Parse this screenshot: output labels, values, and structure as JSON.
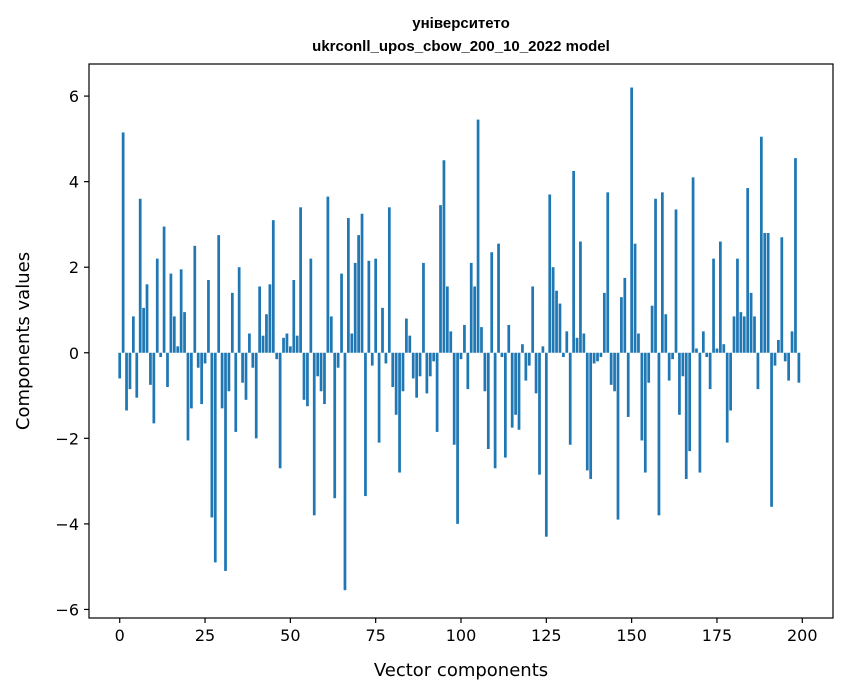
{
  "chart_data": {
    "type": "bar",
    "title_line1": "університето",
    "title_line2": "ukrconll_upos_cbow_200_10_2022 model",
    "xlabel": "Vector components",
    "ylabel": "Components values",
    "xlim": [
      -9,
      209
    ],
    "ylim": [
      -6.2,
      6.75
    ],
    "xticks": [
      0,
      25,
      50,
      75,
      100,
      125,
      150,
      175,
      200
    ],
    "yticks": [
      -6,
      -4,
      -2,
      0,
      2,
      4,
      6
    ],
    "bar_color": "#1f77b4",
    "values": [
      -0.6,
      5.15,
      -1.35,
      -0.85,
      0.85,
      -1.05,
      3.6,
      1.05,
      1.6,
      -0.75,
      -1.65,
      2.2,
      -0.1,
      2.95,
      -0.8,
      1.85,
      0.85,
      0.15,
      1.95,
      0.95,
      -2.05,
      -1.3,
      2.5,
      -0.35,
      -1.2,
      -0.25,
      1.7,
      -3.85,
      -4.9,
      2.75,
      -1.3,
      -5.1,
      -0.9,
      1.4,
      -1.85,
      2.0,
      -0.7,
      -1.1,
      0.45,
      -0.35,
      -2.0,
      1.55,
      0.4,
      0.9,
      1.6,
      3.1,
      -0.15,
      -2.7,
      0.35,
      0.45,
      0.15,
      1.7,
      0.4,
      3.4,
      -1.1,
      -1.25,
      2.2,
      -3.8,
      -0.55,
      -0.9,
      -1.2,
      3.65,
      0.85,
      -3.4,
      -0.35,
      1.85,
      -5.55,
      3.15,
      0.45,
      2.1,
      2.75,
      3.25,
      -3.35,
      2.15,
      -0.3,
      2.2,
      -2.1,
      1.05,
      -0.25,
      3.4,
      -0.8,
      -1.45,
      -2.8,
      -0.9,
      0.8,
      0.4,
      -0.6,
      -1.05,
      -0.55,
      2.1,
      -0.95,
      -0.55,
      -0.2,
      -1.85,
      3.45,
      4.5,
      1.55,
      0.5,
      -2.15,
      -4.0,
      -0.15,
      0.65,
      -0.85,
      2.1,
      1.55,
      5.45,
      0.6,
      -0.9,
      -2.25,
      2.35,
      -2.7,
      2.55,
      -0.1,
      -2.45,
      0.65,
      -1.75,
      -1.45,
      -1.8,
      0.2,
      -0.65,
      -0.3,
      1.55,
      -0.95,
      -2.85,
      0.15,
      -4.3,
      3.7,
      2.0,
      1.45,
      1.15,
      -0.1,
      0.5,
      -2.15,
      4.25,
      0.35,
      2.6,
      0.45,
      -2.75,
      -2.95,
      -0.25,
      -0.2,
      -0.1,
      1.4,
      3.75,
      -0.75,
      -0.9,
      -3.9,
      1.3,
      1.75,
      -1.5,
      6.2,
      2.55,
      0.45,
      -2.05,
      -2.8,
      -0.7,
      1.1,
      3.6,
      -3.8,
      3.75,
      0.9,
      -0.65,
      -0.15,
      3.35,
      -1.45,
      -0.55,
      -2.95,
      -2.3,
      4.1,
      0.1,
      -2.8,
      0.5,
      -0.1,
      -0.85,
      2.2,
      0.1,
      2.6,
      0.2,
      -2.1,
      -1.35,
      0.85,
      2.2,
      0.95,
      0.85,
      3.85,
      1.4,
      0.85,
      -0.85,
      5.05,
      2.8,
      2.8,
      -3.6,
      -0.3,
      0.3,
      2.7,
      -0.2,
      -0.65,
      0.5,
      4.55,
      -0.7
    ]
  }
}
